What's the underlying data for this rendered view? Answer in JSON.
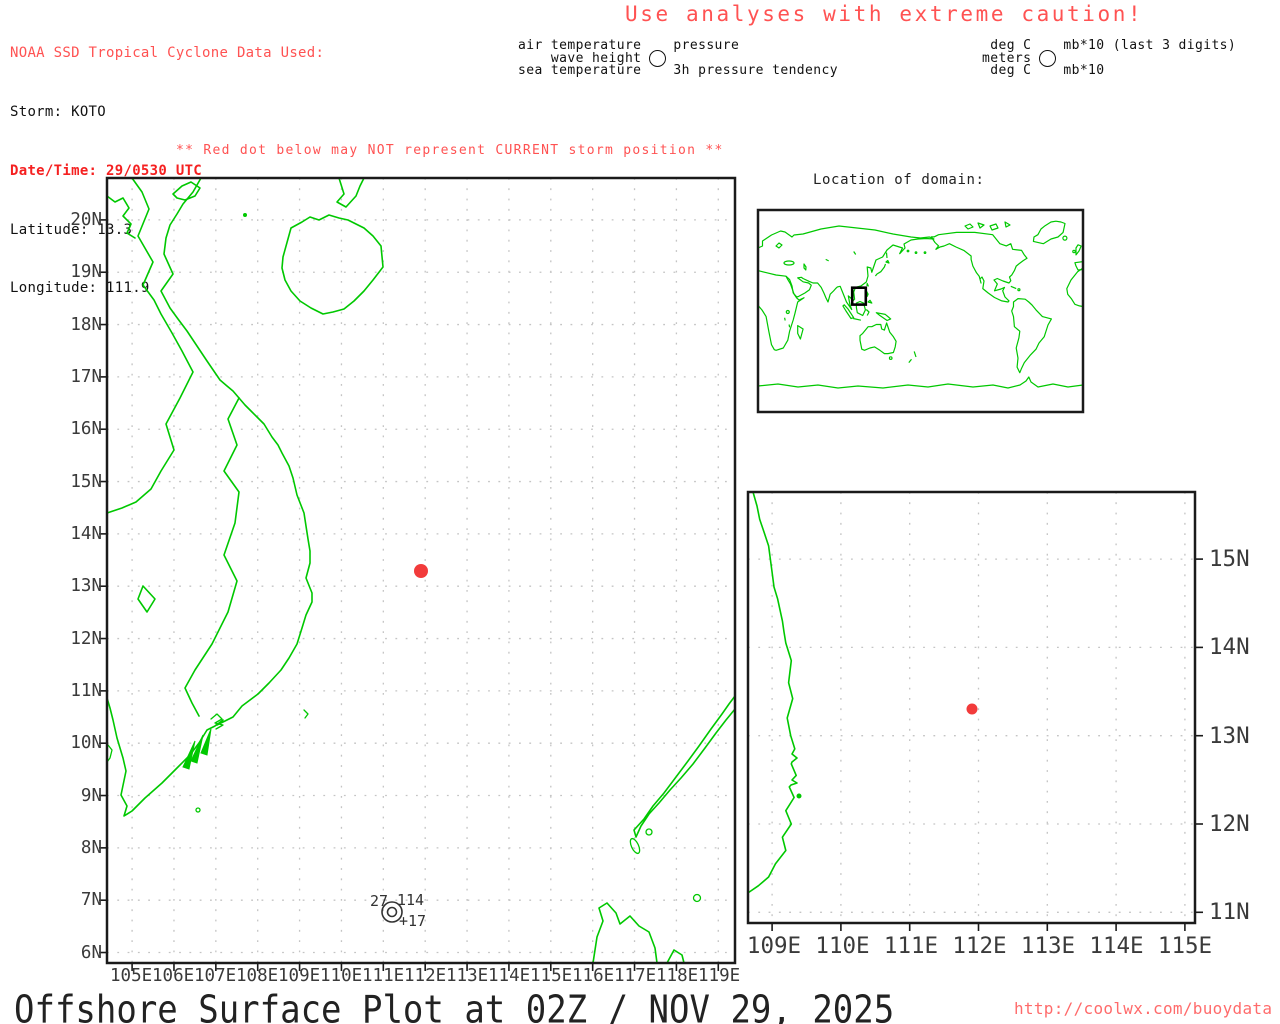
{
  "header": {
    "data_source": "NOAA SSD Tropical Cyclone Data Used:",
    "storm": "Storm: KOTO",
    "datetime": "Date/Time: 29/0530 UTC",
    "latitude": "Latitude: 13.3",
    "longitude": "Longitude: 111.9"
  },
  "caution": "Use analyses with extreme caution!",
  "station_legend": {
    "air_temperature": "air temperature",
    "wave_height": "wave height",
    "sea_temperature": "sea temperature",
    "pressure": "pressure",
    "pressure_tendency": "3h pressure tendency",
    "units_air": "deg C",
    "units_wave": "meters",
    "units_sea": "deg C",
    "units_pressure": "mb*10 (last 3 digits)",
    "units_tendency": "mb*10"
  },
  "warning": "** Red dot below may NOT represent CURRENT storm position **",
  "main_map": {
    "lat_labels": [
      "20N",
      "19N",
      "18N",
      "17N",
      "16N",
      "15N",
      "14N",
      "13N",
      "12N",
      "11N",
      "10N",
      "9N",
      "8N",
      "7N",
      "6N"
    ],
    "lon_labels": [
      "105E",
      "106E",
      "107E",
      "108E",
      "109E",
      "110E",
      "111E",
      "112E",
      "113E",
      "114E",
      "115E",
      "116E",
      "117E",
      "118E",
      "119E"
    ],
    "storm_position": {
      "lat": 13.3,
      "lon": 111.9
    },
    "station_report": {
      "air_temp": "27",
      "pressure": "114",
      "tendency": "+17"
    }
  },
  "inset_map": {
    "title": "Location of domain:"
  },
  "zoom_map": {
    "lat_labels": [
      "15N",
      "14N",
      "13N",
      "12N",
      "11N"
    ],
    "lon_labels": [
      "109E",
      "110E",
      "111E",
      "112E",
      "113E",
      "114E",
      "115E"
    ],
    "storm_position": {
      "lat": 13.3,
      "lon": 111.9
    }
  },
  "footer": {
    "title": "Offshore Surface Plot at 02Z / NOV 29, 2025",
    "url": "http://coolwx.com/buoydata"
  },
  "colors": {
    "coastline": "#00c800",
    "storm_dot": "#f23b3b",
    "alert_red": "#ff5252",
    "bold_red": "#f52020",
    "grid": "#c4c4c4",
    "axis_text": "#3a3a3a"
  }
}
